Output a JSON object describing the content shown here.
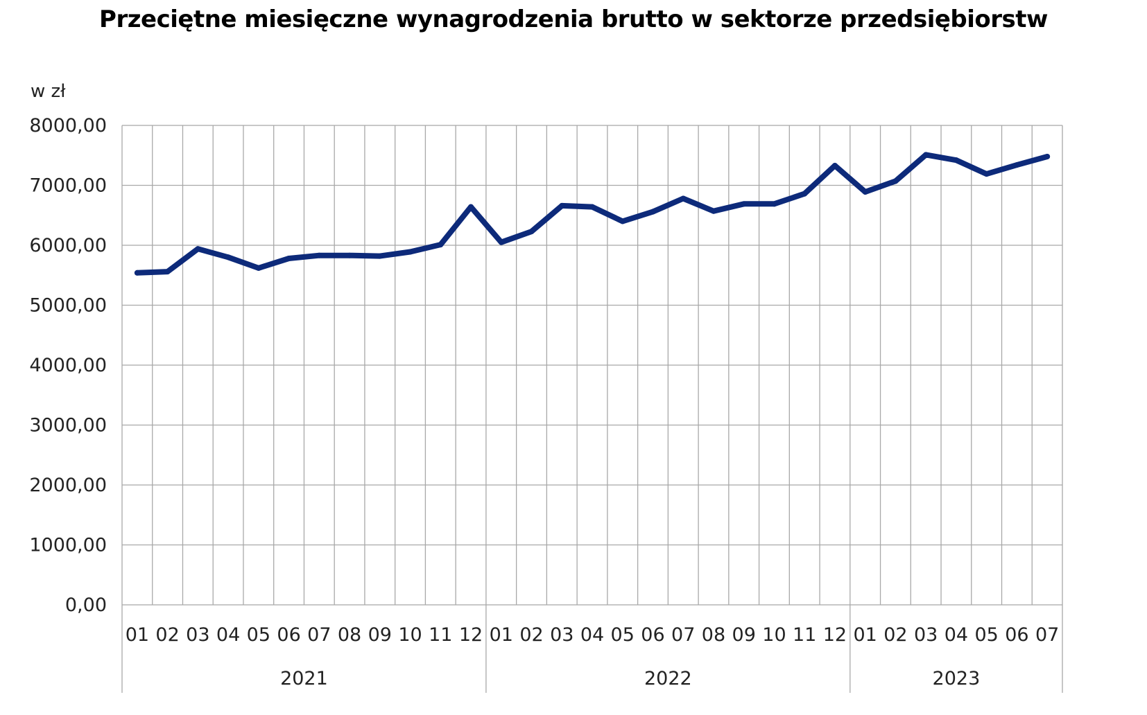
{
  "chart_data": {
    "type": "line",
    "title": "Przeciętne miesięczne wynagrodzenia brutto w sektorze przedsiębiorstw",
    "ylabel": "w zł",
    "xlabel": "",
    "ylim": [
      0,
      8000
    ],
    "yticks": [
      "0,00",
      "1000,00",
      "2000,00",
      "3000,00",
      "4000,00",
      "5000,00",
      "6000,00",
      "7000,00",
      "8000,00"
    ],
    "grid": true,
    "legend": "none",
    "line_color": "#0d2a7a",
    "years": [
      {
        "label": "2021",
        "months": 12
      },
      {
        "label": "2022",
        "months": 12
      },
      {
        "label": "2023",
        "months": 7
      }
    ],
    "categories": [
      "01",
      "02",
      "03",
      "04",
      "05",
      "06",
      "07",
      "08",
      "09",
      "10",
      "11",
      "12",
      "01",
      "02",
      "03",
      "04",
      "05",
      "06",
      "07",
      "08",
      "09",
      "10",
      "11",
      "12",
      "01",
      "02",
      "03",
      "04",
      "05",
      "06",
      "07"
    ],
    "series": [
      {
        "values": [
          5540,
          5560,
          5940,
          5800,
          5620,
          5780,
          5830,
          5830,
          5820,
          5890,
          6010,
          6640,
          6050,
          6230,
          6660,
          6640,
          6400,
          6560,
          6780,
          6570,
          6690,
          6690,
          6860,
          7330,
          6890,
          7070,
          7510,
          7420,
          7190,
          7340,
          7480
        ]
      }
    ]
  }
}
